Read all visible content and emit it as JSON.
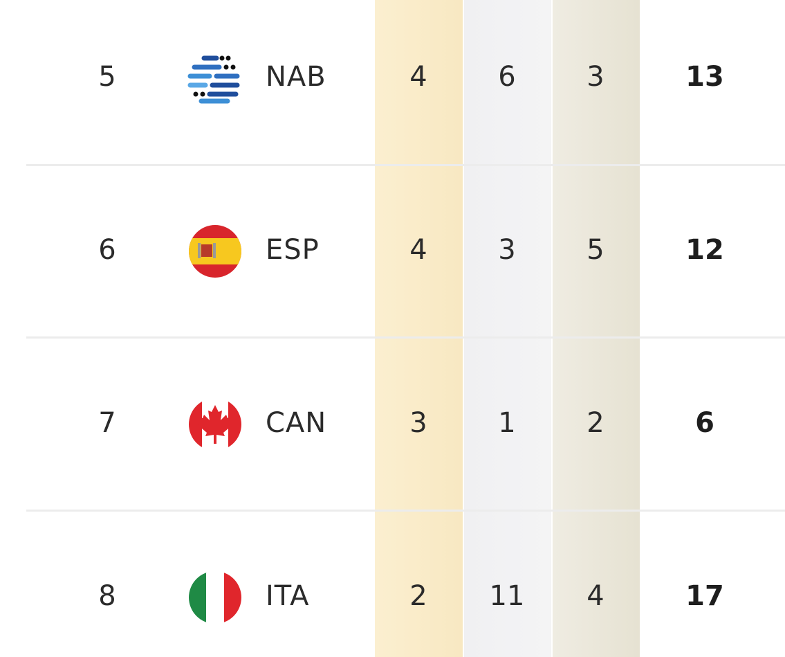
{
  "rows": [
    {
      "rank": 5,
      "code": "NAB",
      "gold": 4,
      "silver": 6,
      "bronze": 3,
      "total": 13
    },
    {
      "rank": 6,
      "code": "ESP",
      "gold": 4,
      "silver": 3,
      "bronze": 5,
      "total": 12
    },
    {
      "rank": 7,
      "code": "CAN",
      "gold": 3,
      "silver": 1,
      "bronze": 2,
      "total": 6
    },
    {
      "rank": 8,
      "code": "ITA",
      "gold": 2,
      "silver": 11,
      "bronze": 4,
      "total": 17
    }
  ]
}
